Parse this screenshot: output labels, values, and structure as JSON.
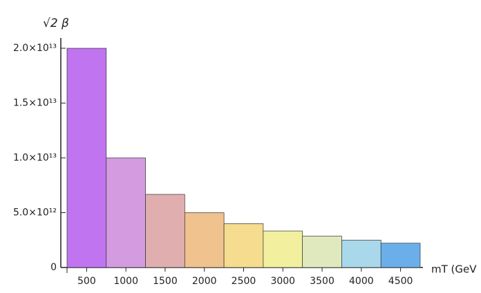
{
  "chart_data": {
    "type": "bar",
    "y_label": "√2 β",
    "x_label": "mT (GeV",
    "categories": [
      "500",
      "1000",
      "1500",
      "2000",
      "2500",
      "3000",
      "3500",
      "4000",
      "4500"
    ],
    "values": [
      20000000000000.0,
      10000000000000.0,
      6670000000000.0,
      5000000000000.0,
      4000000000000.0,
      3330000000000.0,
      2860000000000.0,
      2500000000000.0,
      2220000000000.0
    ],
    "colors": [
      "#c074f0",
      "#d49be0",
      "#e0aeae",
      "#efc28e",
      "#f5dc8e",
      "#f2f09e",
      "#dfe9bd",
      "#a9d8ea",
      "#6aaeea"
    ],
    "ylim": [
      0,
      21000000000000.0
    ],
    "yticks": [
      0,
      {
        "value": 5000000000000.0,
        "label": "5.0×10¹²"
      },
      {
        "value": 10000000000000.0,
        "label": "1.0×10¹³"
      },
      {
        "value": 15000000000000.0,
        "label": "1.5×10¹³"
      },
      {
        "value": 20000000000000.0,
        "label": "2.0×10¹³"
      }
    ]
  }
}
